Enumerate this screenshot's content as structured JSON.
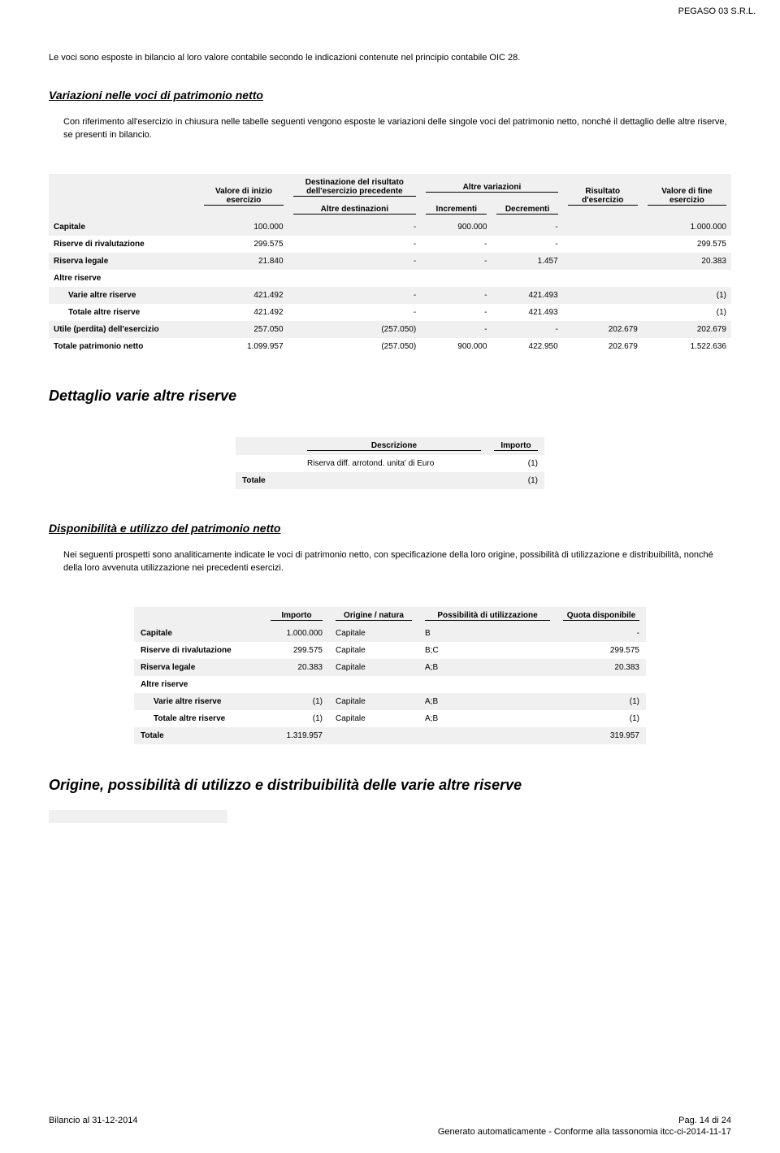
{
  "header": {
    "company": "PEGASO 03 S.R.L."
  },
  "intro": "Le voci sono esposte in bilancio al loro valore contabile secondo le indicazioni contenute nel principio contabile OIC 28.",
  "section1": {
    "heading": "Variazioni nelle voci di patrimonio netto",
    "para": "Con riferimento all'esercizio in chiusura nelle tabelle seguenti vengono esposte le variazioni delle singole voci del patrimonio netto, nonché il dettaglio delle altre riserve, se presenti in bilancio."
  },
  "table1": {
    "headers": {
      "col1": "Valore di inizio esercizio",
      "group_dest": "Destinazione del risultato dell'esercizio precedente",
      "col_dest_sub": "Altre destinazioni",
      "group_var": "Altre variazioni",
      "col_inc": "Incrementi",
      "col_dec": "Decrementi",
      "col_ris": "Risultato d'esercizio",
      "col_fine": "Valore di fine esercizio"
    },
    "rows": [
      {
        "label": "Capitale",
        "v0": "100.000",
        "v1": "-",
        "v2": "900.000",
        "v3": "-",
        "v4": "",
        "v5": "1.000.000",
        "shaded": true
      },
      {
        "label": "Riserve di rivalutazione",
        "v0": "299.575",
        "v1": "-",
        "v2": "-",
        "v3": "-",
        "v4": "",
        "v5": "299.575",
        "shaded": false
      },
      {
        "label": "Riserva legale",
        "v0": "21.840",
        "v1": "-",
        "v2": "-",
        "v3": "1.457",
        "v4": "",
        "v5": "20.383",
        "shaded": true
      },
      {
        "label": "Altre riserve",
        "v0": "",
        "v1": "",
        "v2": "",
        "v3": "",
        "v4": "",
        "v5": "",
        "shaded": false,
        "header_only": true
      },
      {
        "label": "Varie altre riserve",
        "v0": "421.492",
        "v1": "-",
        "v2": "-",
        "v3": "421.493",
        "v4": "",
        "v5": "(1)",
        "shaded": true,
        "indent": true
      },
      {
        "label": "Totale altre riserve",
        "v0": "421.492",
        "v1": "-",
        "v2": "-",
        "v3": "421.493",
        "v4": "",
        "v5": "(1)",
        "shaded": false,
        "indent": true
      },
      {
        "label": "Utile (perdita) dell'esercizio",
        "v0": "257.050",
        "v1": "(257.050)",
        "v2": "-",
        "v3": "-",
        "v4": "202.679",
        "v5": "202.679",
        "shaded": true
      },
      {
        "label": "Totale patrimonio netto",
        "v0": "1.099.957",
        "v1": "(257.050)",
        "v2": "900.000",
        "v3": "422.950",
        "v4": "202.679",
        "v5": "1.522.636",
        "shaded": false
      }
    ]
  },
  "section2": {
    "heading": "Dettaglio varie altre riserve"
  },
  "table2": {
    "headers": {
      "desc": "Descrizione",
      "imp": "Importo"
    },
    "rows": [
      {
        "desc": "Riserva diff. arrotond. unita' di Euro",
        "imp": "(1)",
        "shaded": false
      },
      {
        "desc": "Totale",
        "imp": "(1)",
        "shaded": true
      }
    ]
  },
  "section3": {
    "heading": "Disponibilità e utilizzo del patrimonio netto",
    "para": "Nei seguenti prospetti sono analiticamente indicate le voci di patrimonio netto, con specificazione della loro origine, possibilità di utilizzazione e distribuibilità, nonché della loro avvenuta utilizzazione nei precedenti esercizi."
  },
  "table3": {
    "headers": {
      "imp": "Importo",
      "orig": "Origine / natura",
      "poss": "Possibilità di utilizzazione",
      "quota": "Quota disponibile"
    },
    "rows": [
      {
        "label": "Capitale",
        "imp": "1.000.000",
        "orig": "Capitale",
        "poss": "B",
        "quota": "-",
        "shaded": true
      },
      {
        "label": "Riserve di rivalutazione",
        "imp": "299.575",
        "orig": "Capitale",
        "poss": "B;C",
        "quota": "299.575",
        "shaded": false
      },
      {
        "label": "Riserva legale",
        "imp": "20.383",
        "orig": "Capitale",
        "poss": "A;B",
        "quota": "20.383",
        "shaded": true
      },
      {
        "label": "Altre riserve",
        "imp": "",
        "orig": "",
        "poss": "",
        "quota": "",
        "shaded": false,
        "header_only": true
      },
      {
        "label": "Varie altre riserve",
        "imp": "(1)",
        "orig": "Capitale",
        "poss": "A;B",
        "quota": "(1)",
        "shaded": true,
        "indent": true
      },
      {
        "label": "Totale altre riserve",
        "imp": "(1)",
        "orig": "Capitale",
        "poss": "A;B",
        "quota": "(1)",
        "shaded": false,
        "indent": true
      },
      {
        "label": "Totale",
        "imp": "1.319.957",
        "orig": "",
        "poss": "",
        "quota": "319.957",
        "shaded": true
      }
    ]
  },
  "section4": {
    "heading": "Origine, possibilità di utilizzo e distribuibilità delle varie altre riserve"
  },
  "footer": {
    "left": "Bilancio al 31-12-2014",
    "right": "Pag. 14 di 24",
    "sub": "Generato automaticamente - Conforme alla tassonomia itcc-ci-2014-11-17"
  }
}
